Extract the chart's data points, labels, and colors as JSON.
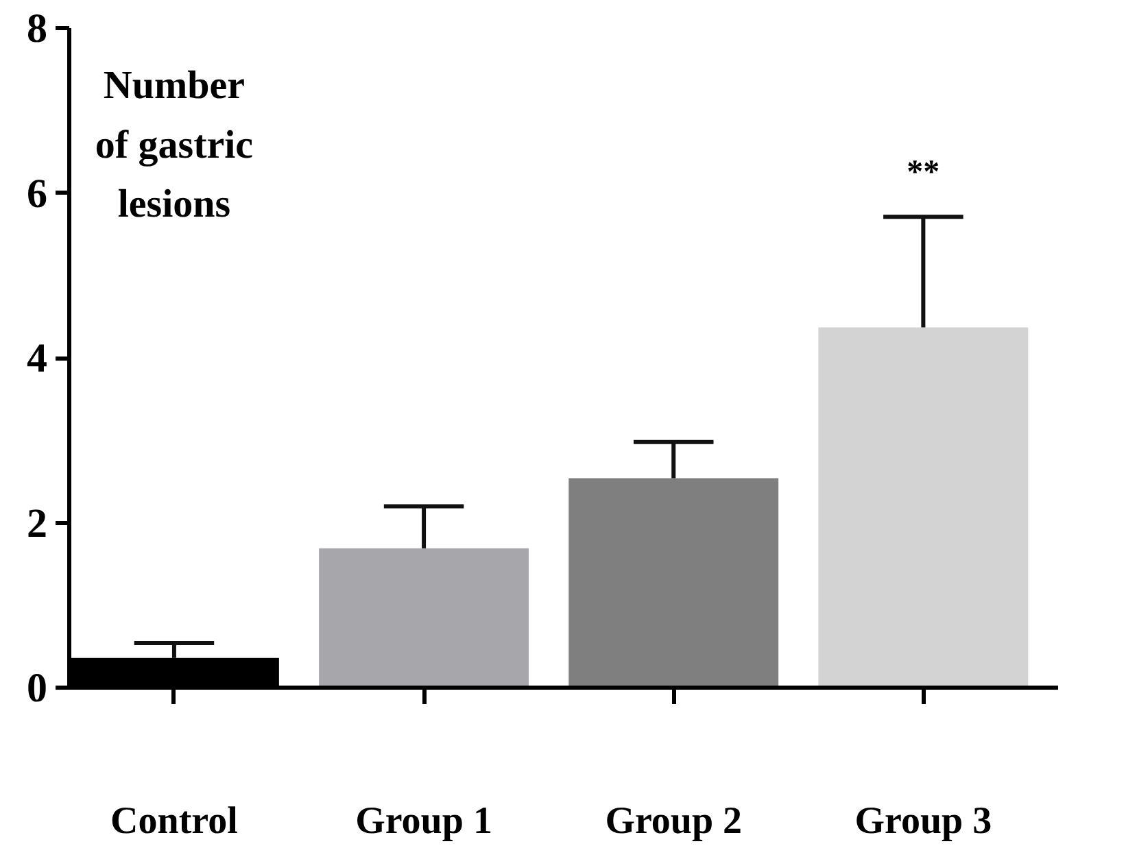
{
  "chart_data": {
    "type": "bar",
    "ylabel": "Number of gastric lesions",
    "categories": [
      "Control",
      "Group 1",
      "Group 2",
      "Group 3"
    ],
    "values": [
      0.36,
      1.69,
      2.54,
      4.37
    ],
    "colors": [
      "#000000",
      "#a6a6ab",
      "#7f7f7f",
      "#d3d3d3"
    ],
    "errors": [
      [
        0.36,
        0.54
      ],
      [
        1.69,
        2.2
      ],
      [
        2.54,
        2.98
      ],
      [
        4.37,
        5.71
      ]
    ],
    "ylim": [
      0,
      8
    ],
    "yticks": [
      0,
      2,
      4,
      6,
      8
    ],
    "grid": false,
    "annotations": [
      "**"
    ]
  }
}
